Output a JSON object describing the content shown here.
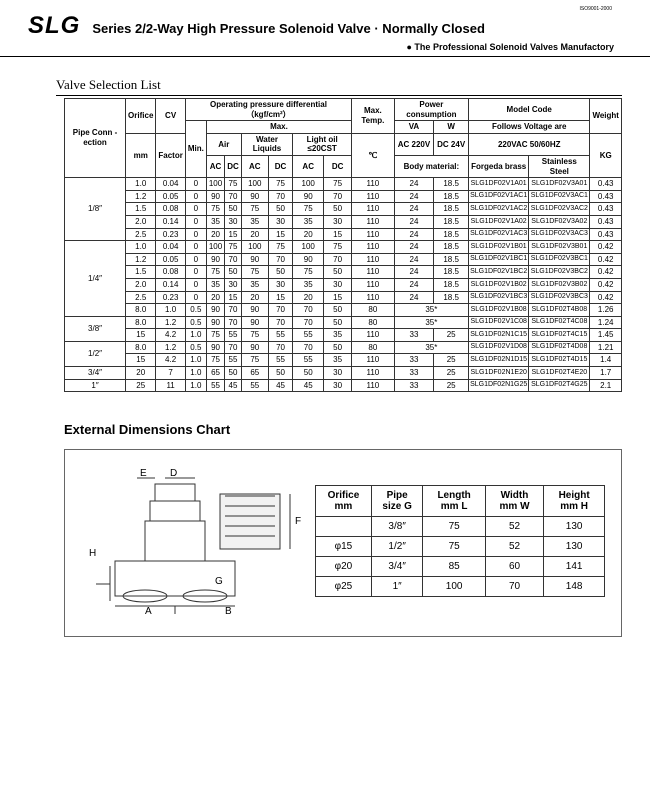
{
  "header": {
    "iso": "ISO9001-2000",
    "brand": "SLG",
    "title": "Series 2/2-Way High Pressure Solenoid Valve · Normally Closed",
    "subtitle": "● The Professional Solenoid Valves Manufactory"
  },
  "selection": {
    "title": "Valve Selection List",
    "h_pipe": "Pipe Conn -ection",
    "h_orifice": "Orifice",
    "h_cv": "CV",
    "h_opd": "Operating pressure differential",
    "h_opd_unit": "（kgf/cm²）",
    "h_max": "Max.",
    "h_maxtemp": "Max. Temp.",
    "h_tempunit": "℃",
    "h_power": "Power consumption",
    "h_model": "Model Code",
    "h_follow": "Follows Voltage are",
    "h_volt": "220VAC   50/60HZ",
    "h_weight": "Weight",
    "h_kg": "KG",
    "h_factor": "Factor",
    "h_min": "Min.",
    "h_air": "Air",
    "h_water": "Water Liquids",
    "h_oil": "Light oil ≤20CST",
    "h_va": "VA",
    "h_w": "W",
    "h_ac220": "AC 220V",
    "h_dc24": "DC 24V",
    "h_body": "Body material:",
    "h_brass": "Forgeda brass",
    "h_ss": "Stainless Steel",
    "h_mm": "mm",
    "h_ac": "AC",
    "h_dc": "DC",
    "pipes": [
      "1/8″",
      "1/4″",
      "3/8″",
      "1/2″",
      "3/4″",
      "1″"
    ],
    "rowspans": [
      5,
      6,
      2,
      2,
      1,
      1
    ],
    "rows": [
      [
        "1.0",
        "0.04",
        "0",
        "100",
        "75",
        "100",
        "75",
        "100",
        "75",
        "110",
        "24",
        "18.5",
        "SLG1DF02V1A01",
        "SLG1DF02V3A01",
        "0.43"
      ],
      [
        "1.2",
        "0.05",
        "0",
        "90",
        "70",
        "90",
        "70",
        "90",
        "70",
        "110",
        "24",
        "18.5",
        "SLG1DF02V1AC1",
        "SLG1DF02V3AC1",
        "0.43"
      ],
      [
        "1.5",
        "0.08",
        "0",
        "75",
        "50",
        "75",
        "50",
        "75",
        "50",
        "110",
        "24",
        "18.5",
        "SLG1DF02V1AC2",
        "SLG1DF02V3AC2",
        "0.43"
      ],
      [
        "2.0",
        "0.14",
        "0",
        "35",
        "30",
        "35",
        "30",
        "35",
        "30",
        "110",
        "24",
        "18.5",
        "SLG1DF02V1A02",
        "SLG1DF02V3A02",
        "0.43"
      ],
      [
        "2.5",
        "0.23",
        "0",
        "20",
        "15",
        "20",
        "15",
        "20",
        "15",
        "110",
        "24",
        "18.5",
        "SLG1DF02V1AC3",
        "SLG1DF02V3AC3",
        "0.43"
      ],
      [
        "1.0",
        "0.04",
        "0",
        "100",
        "75",
        "100",
        "75",
        "100",
        "75",
        "110",
        "24",
        "18.5",
        "SLG1DF02V1B01",
        "SLG1DF02V3B01",
        "0.42"
      ],
      [
        "1.2",
        "0.05",
        "0",
        "90",
        "70",
        "90",
        "70",
        "90",
        "70",
        "110",
        "24",
        "18.5",
        "SLG1DF02V1BC1",
        "SLG1DF02V3BC1",
        "0.42"
      ],
      [
        "1.5",
        "0.08",
        "0",
        "75",
        "50",
        "75",
        "50",
        "75",
        "50",
        "110",
        "24",
        "18.5",
        "SLG1DF02V1BC2",
        "SLG1DF02V3BC2",
        "0.42"
      ],
      [
        "2.0",
        "0.14",
        "0",
        "35",
        "30",
        "35",
        "30",
        "35",
        "30",
        "110",
        "24",
        "18.5",
        "SLG1DF02V1B02",
        "SLG1DF02V3B02",
        "0.42"
      ],
      [
        "2.5",
        "0.23",
        "0",
        "20",
        "15",
        "20",
        "15",
        "20",
        "15",
        "110",
        "24",
        "18.5",
        "SLG1DF02V1BC3",
        "SLG1DF02V3BC3",
        "0.42"
      ],
      [
        "8.0",
        "1.0",
        "0.5",
        "90",
        "70",
        "90",
        "70",
        "70",
        "50",
        "80",
        "35*",
        "",
        "SLG1DF02V1B08",
        "SLG1DF02T4B08",
        "1.26"
      ],
      [
        "8.0",
        "1.2",
        "0.5",
        "90",
        "70",
        "90",
        "70",
        "70",
        "50",
        "80",
        "35*",
        "",
        "SLG1DF02V1C08",
        "SLG1DF02T4C08",
        "1.24"
      ],
      [
        "15",
        "4.2",
        "1.0",
        "75",
        "55",
        "75",
        "55",
        "55",
        "35",
        "110",
        "33",
        "25",
        "SLG1DF02N1C15",
        "SLG1DF02T4C15",
        "1.45"
      ],
      [
        "8.0",
        "1.2",
        "0.5",
        "90",
        "70",
        "90",
        "70",
        "70",
        "50",
        "80",
        "35*",
        "",
        "SLG1DF02V1D08",
        "SLG1DF02T4D08",
        "1.21"
      ],
      [
        "15",
        "4.2",
        "1.0",
        "75",
        "55",
        "75",
        "55",
        "55",
        "35",
        "110",
        "33",
        "25",
        "SLG1DF02N1D15",
        "SLG1DF02T4D15",
        "1.4"
      ],
      [
        "20",
        "7",
        "1.0",
        "65",
        "50",
        "65",
        "50",
        "50",
        "30",
        "110",
        "33",
        "25",
        "SLG1DF02N1E20",
        "SLG1DF02T4E20",
        "1.7"
      ],
      [
        "25",
        "11",
        "1.0",
        "55",
        "45",
        "55",
        "45",
        "45",
        "30",
        "110",
        "33",
        "25",
        "SLG1DF02N1G25",
        "SLG1DF02T4G25",
        "2.1"
      ]
    ]
  },
  "ext": {
    "title": "External Dimensions Chart",
    "h_orifice": "Orifice    mm",
    "h_pipe": "Pipe size G",
    "h_len": "Length mm L",
    "h_wid": "Width  mm W",
    "h_hei": "Height mm H",
    "rows": [
      [
        "",
        "3/8″",
        "75",
        "52",
        "130"
      ],
      [
        "φ15",
        "1/2″",
        "75",
        "52",
        "130"
      ],
      [
        "φ20",
        "3/4″",
        "85",
        "60",
        "141"
      ],
      [
        "φ25",
        "1″",
        "100",
        "70",
        "148"
      ]
    ],
    "labels": {
      "E": "E",
      "D": "D",
      "H": "H",
      "F": "F",
      "A": "A",
      "G": "G",
      "B": "B"
    }
  }
}
